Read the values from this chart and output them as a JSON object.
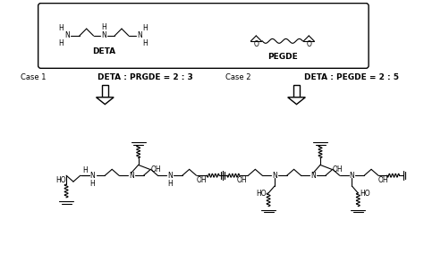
{
  "background": "#ffffff",
  "line_color": "#000000",
  "label_deta": "DETA",
  "label_pegde": "PEGDE",
  "case1_text": "DETA : PRGDE = 2 : 3",
  "case2_text": "DETA : PEGDE = 2 : 5",
  "case1_label": "Case 1",
  "case2_label": "Case 2",
  "font_size_label": 6.5,
  "font_size_atom": 5.5,
  "font_size_case": 6.0,
  "font_size_case_bold": 6.5
}
